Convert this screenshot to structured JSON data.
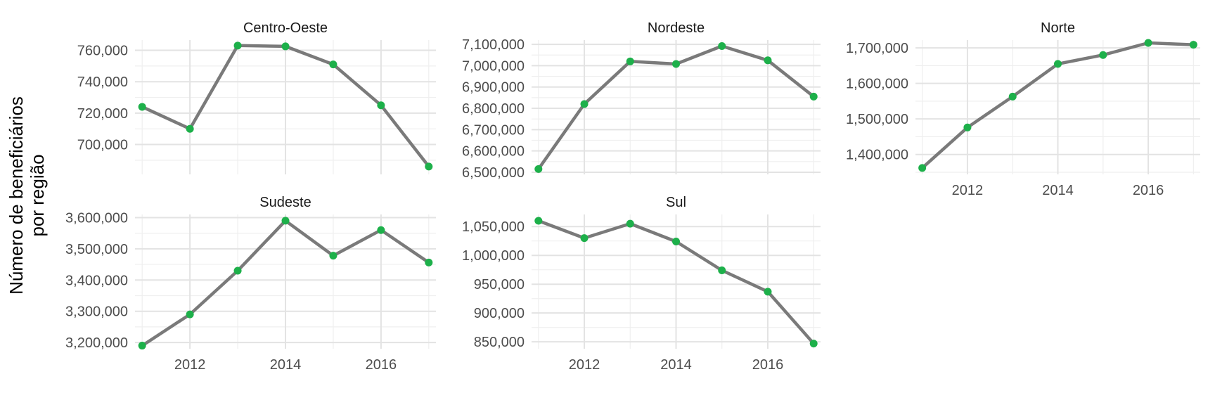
{
  "chart_data": {
    "type": "line",
    "ylabel": "Número de beneficiários por região",
    "ylabel_lines": [
      "Número de beneficiários",
      "por região"
    ],
    "xlabel": "",
    "x": [
      2011,
      2012,
      2013,
      2014,
      2015,
      2016,
      2017
    ],
    "x_ticks": [
      2012,
      2014,
      2016
    ],
    "xlim": [
      2010.85,
      2017.15
    ],
    "grid": true,
    "colors": {
      "line": "#7a7a7a",
      "point": "#1db04a"
    },
    "panels": [
      {
        "name": "Centro-Oeste",
        "values": [
          724000,
          710000,
          763000,
          762500,
          751000,
          725000,
          686000
        ],
        "ylim": [
          681000,
          766500
        ],
        "y_ticks": [
          700000,
          720000,
          740000,
          760000
        ],
        "y_tick_labels": [
          "700,000",
          "720,000",
          "740,000",
          "760,000"
        ]
      },
      {
        "name": "Nordeste",
        "values": [
          6515000,
          6820000,
          7020000,
          7008000,
          7092000,
          7025000,
          6855000
        ],
        "ylim": [
          6490000,
          7120000
        ],
        "y_ticks": [
          6500000,
          6600000,
          6700000,
          6800000,
          6900000,
          7000000,
          7100000
        ],
        "y_tick_labels": [
          "6,500,000",
          "6,600,000",
          "6,700,000",
          "6,800,000",
          "6,900,000",
          "7,000,000",
          "7,100,000"
        ]
      },
      {
        "name": "Norte",
        "values": [
          1362000,
          1476000,
          1563000,
          1655000,
          1680000,
          1714000,
          1709000
        ],
        "ylim": [
          1344000,
          1722000
        ],
        "y_ticks": [
          1400000,
          1500000,
          1600000,
          1700000
        ],
        "y_tick_labels": [
          "1,400,000",
          "1,500,000",
          "1,600,000",
          "1,700,000"
        ]
      },
      {
        "name": "Sudeste",
        "values": [
          3190000,
          3290000,
          3430000,
          3590000,
          3478000,
          3560000,
          3456000
        ],
        "ylim": [
          3180000,
          3610000
        ],
        "y_ticks": [
          3200000,
          3300000,
          3400000,
          3500000,
          3600000
        ],
        "y_tick_labels": [
          "3,200,000",
          "3,300,000",
          "3,400,000",
          "3,500,000",
          "3,600,000"
        ]
      },
      {
        "name": "Sul",
        "values": [
          1060000,
          1030000,
          1055000,
          1024000,
          974000,
          937000,
          847000
        ],
        "ylim": [
          838000,
          1071000
        ],
        "y_ticks": [
          850000,
          900000,
          950000,
          1000000,
          1050000
        ],
        "y_tick_labels": [
          "850,000",
          "900,000",
          "950,000",
          "1,000,000",
          "1,050,000"
        ]
      }
    ]
  }
}
